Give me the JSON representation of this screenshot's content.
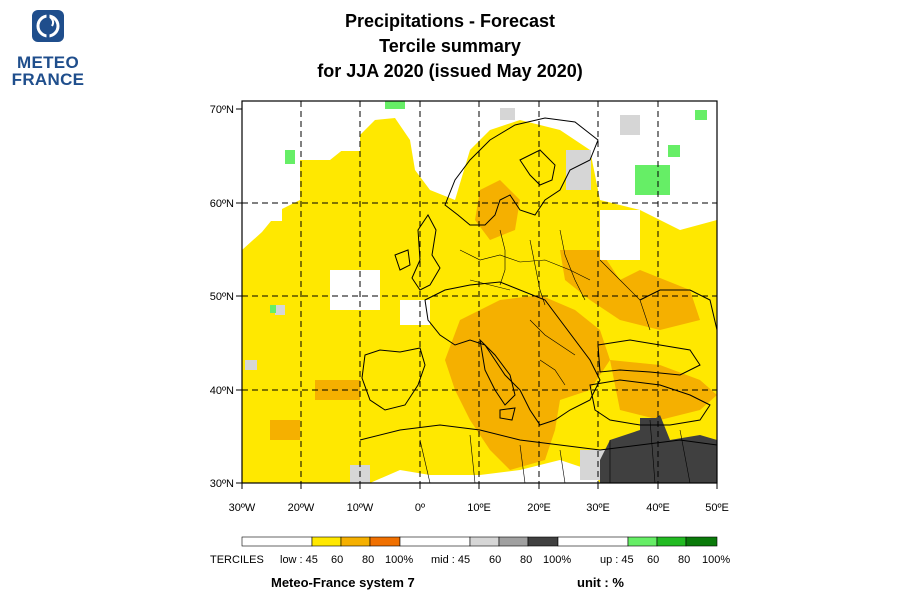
{
  "logo": {
    "line1": "METEO",
    "line2": "FRANCE"
  },
  "title": {
    "line1": "Precipitations   -   Forecast",
    "line2": "Tercile summary",
    "line3": "for JJA 2020   (issued May 2020)"
  },
  "map": {
    "lat_labels": [
      "70ºN",
      "60ºN",
      "50ºN",
      "40ºN",
      "30ºN"
    ],
    "lon_labels": [
      "30ºW",
      "20ºW",
      "10ºW",
      "0º",
      "10ºE",
      "20ºE",
      "30ºE",
      "40ºE",
      "50ºE"
    ],
    "colors": {
      "low_45": "#ffe800",
      "low_60": "#f5b000",
      "low_80": "#f07000",
      "mid_45": "#d6d6d6",
      "mid_60": "#a0a0a0",
      "mid_80": "#404040",
      "up_45": "#66ee66",
      "up_60": "#22bb22",
      "up_80": "#0a7a0a"
    }
  },
  "legend": {
    "terciles_label": "TERCILES",
    "low_label": "low : 45",
    "mid_label": "mid : 45",
    "up_label": "up : 45",
    "tick_60": "60",
    "tick_80": "80",
    "tick_100": "100%"
  },
  "footer": {
    "system": "Meteo-France system 7",
    "unit": "unit : %"
  }
}
